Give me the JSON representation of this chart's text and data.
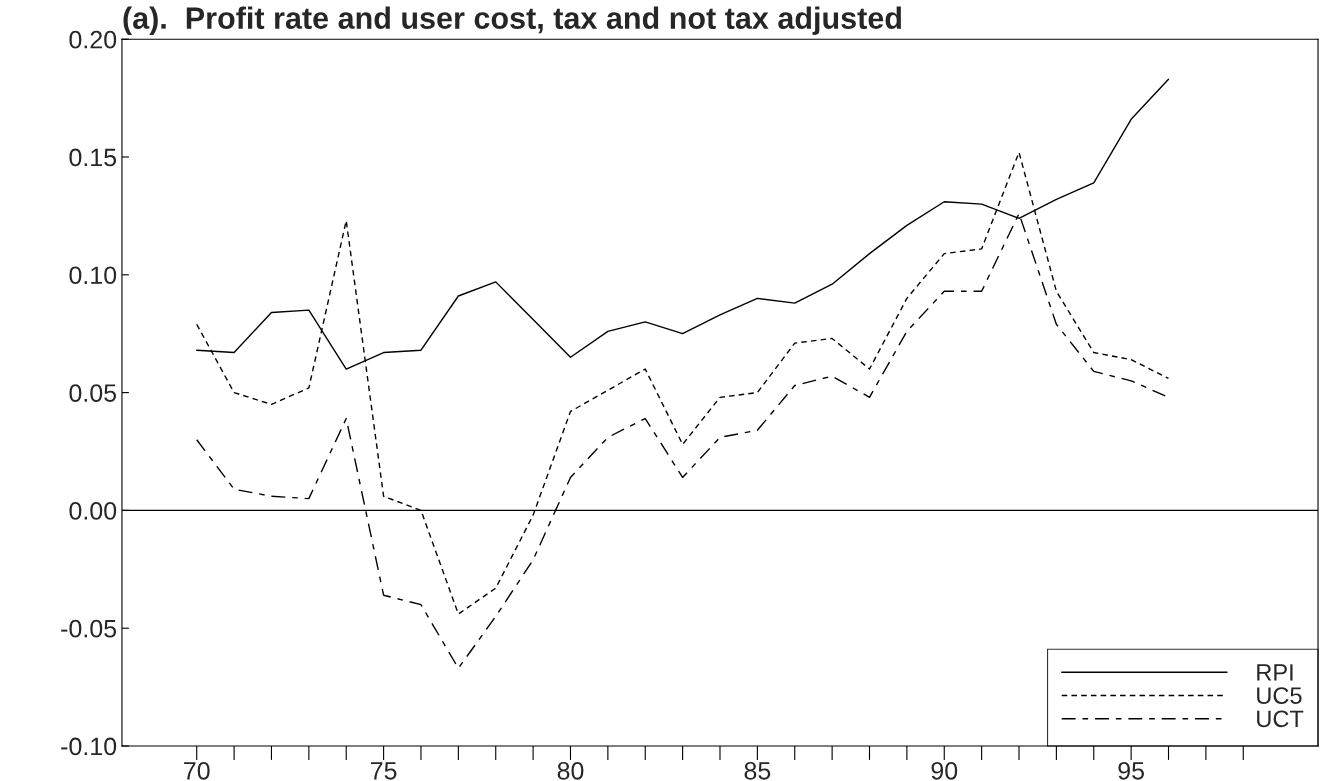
{
  "chart_data": {
    "type": "line",
    "title": "(a).  Profit rate and user cost, tax and not tax adjusted",
    "x": [
      70,
      71,
      72,
      73,
      74,
      75,
      76,
      77,
      78,
      79,
      80,
      81,
      82,
      83,
      84,
      85,
      86,
      87,
      88,
      89,
      90,
      91,
      92,
      93,
      94,
      95,
      96
    ],
    "series": [
      {
        "name": "RPI",
        "color": "#000000",
        "line_style": "solid",
        "values": [
          0.068,
          0.067,
          0.084,
          0.085,
          0.06,
          0.067,
          0.068,
          0.091,
          0.097,
          0.081,
          0.065,
          0.076,
          0.08,
          0.075,
          0.083,
          0.09,
          0.088,
          0.096,
          0.109,
          0.121,
          0.131,
          0.13,
          0.124,
          0.132,
          0.139,
          0.166,
          0.183
        ]
      },
      {
        "name": "UC5",
        "color": "#000000",
        "line_style": "dashed",
        "values": [
          0.079,
          0.05,
          0.045,
          0.052,
          0.123,
          0.006,
          0.0,
          -0.044,
          -0.033,
          -0.002,
          0.042,
          0.051,
          0.06,
          0.028,
          0.048,
          0.05,
          0.071,
          0.073,
          0.06,
          0.09,
          0.109,
          0.111,
          0.152,
          0.093,
          0.067,
          0.064,
          0.056
        ]
      },
      {
        "name": "UCT",
        "color": "#000000",
        "line_style": "dashed",
        "values": [
          0.03,
          0.009,
          0.006,
          0.005,
          0.039,
          -0.036,
          -0.04,
          -0.067,
          -0.045,
          -0.021,
          0.014,
          0.031,
          0.039,
          0.014,
          0.031,
          0.034,
          0.053,
          0.057,
          0.048,
          0.076,
          0.093,
          0.093,
          0.126,
          0.079,
          0.059,
          0.055,
          0.048
        ]
      }
    ],
    "xlim": [
      68,
      100
    ],
    "xticks": [
      {
        "value": 70,
        "label": "70"
      },
      {
        "value": 71,
        "label": null
      },
      {
        "value": 72,
        "label": null
      },
      {
        "value": 73,
        "label": null
      },
      {
        "value": 74,
        "label": null
      },
      {
        "value": 75,
        "label": "75"
      },
      {
        "value": 76,
        "label": null
      },
      {
        "value": 77,
        "label": null
      },
      {
        "value": 78,
        "label": null
      },
      {
        "value": 79,
        "label": null
      },
      {
        "value": 80,
        "label": "80"
      },
      {
        "value": 81,
        "label": null
      },
      {
        "value": 82,
        "label": null
      },
      {
        "value": 83,
        "label": null
      },
      {
        "value": 84,
        "label": null
      },
      {
        "value": 85,
        "label": "85"
      },
      {
        "value": 86,
        "label": null
      },
      {
        "value": 87,
        "label": null
      },
      {
        "value": 88,
        "label": null
      },
      {
        "value": 89,
        "label": null
      },
      {
        "value": 90,
        "label": "90"
      },
      {
        "value": 91,
        "label": null
      },
      {
        "value": 92,
        "label": null
      },
      {
        "value": 93,
        "label": null
      },
      {
        "value": 94,
        "label": null
      },
      {
        "value": 95,
        "label": "95"
      },
      {
        "value": 96,
        "label": null
      },
      {
        "value": 97,
        "label": null
      },
      {
        "value": 98,
        "label": null
      }
    ],
    "ylim": [
      -0.1,
      0.2
    ],
    "yticks": [
      {
        "value": -0.1,
        "label": "-0.10"
      },
      {
        "value": -0.05,
        "label": "-0.05"
      },
      {
        "value": 0,
        "label": "0.00"
      },
      {
        "value": 0.05,
        "label": "0.05"
      },
      {
        "value": 0.1,
        "label": "0.10"
      },
      {
        "value": 0.15,
        "label": "0.15"
      },
      {
        "value": 0.2,
        "label": "0.20"
      }
    ],
    "ref_lines": [
      {
        "axis": "y",
        "value": 0,
        "color": "#000000",
        "line_style": "solid"
      }
    ],
    "grid": false,
    "legend": "bottom right",
    "marker": "none"
  }
}
